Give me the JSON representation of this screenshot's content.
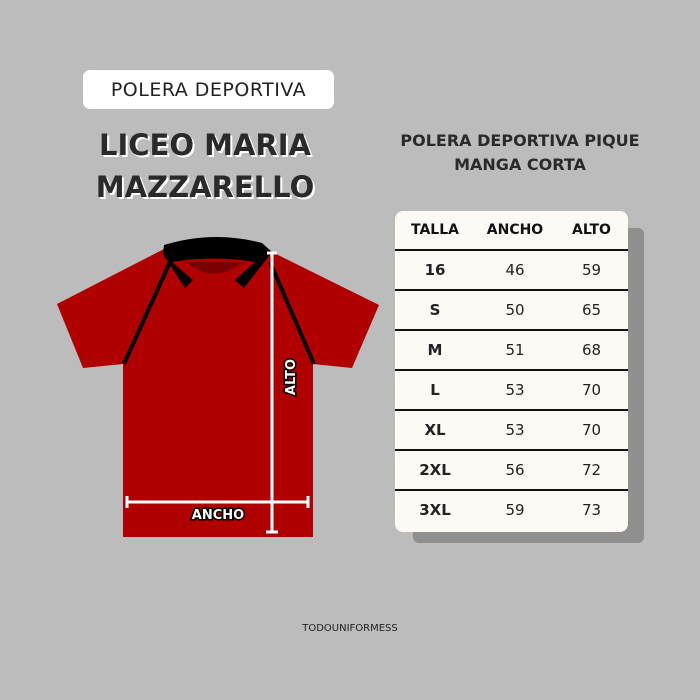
{
  "tag_label": "POLERA DEPORTIVA",
  "title_lines": [
    "LICEO MARIA",
    "MAZZARELLO"
  ],
  "subtitle_lines": [
    "POLERA DEPORTIVA PIQUE",
    "MANGA CORTA"
  ],
  "diagram": {
    "width_label": "ANCHO",
    "height_label": "ALTO",
    "shirt_color": "#b10000",
    "collar_color": "#000000"
  },
  "table": {
    "headers": [
      "TALLA",
      "ANCHO",
      "ALTO"
    ],
    "rows": [
      [
        "16",
        "46",
        "59"
      ],
      [
        "S",
        "50",
        "65"
      ],
      [
        "M",
        "51",
        "68"
      ],
      [
        "L",
        "53",
        "70"
      ],
      [
        "XL",
        "53",
        "70"
      ],
      [
        "2XL",
        "56",
        "72"
      ],
      [
        "3XL",
        "59",
        "73"
      ]
    ]
  },
  "footer": "TODOUNIFORMESS"
}
